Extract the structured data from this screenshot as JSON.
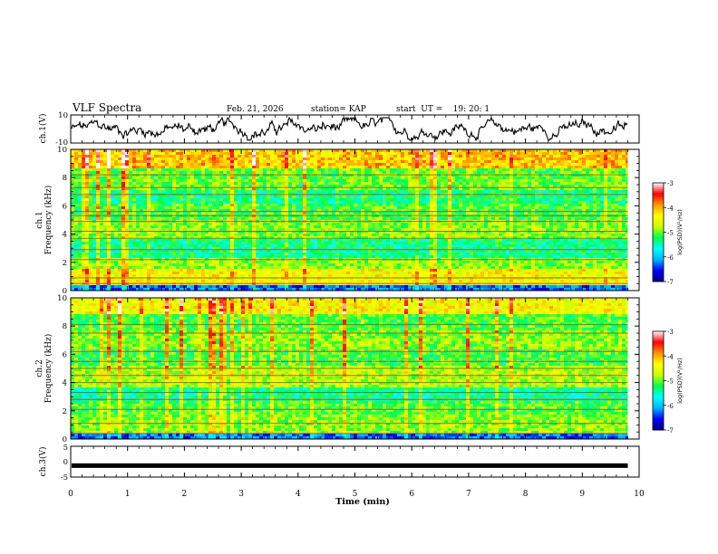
{
  "header": {
    "title": "VLF Spectra",
    "date": "Feb. 21, 2026",
    "station": "station= KAP",
    "start": "start  UT =    19: 20: 1"
  },
  "chart_data": [
    {
      "type": "line",
      "name": "ch1-waveform",
      "ylabel": "ch.1(V)",
      "ylim": [
        -10,
        10
      ],
      "yticks": [
        "10",
        "-10"
      ],
      "x_range_min": [
        0,
        9.8
      ],
      "trace": "continuous noisy voltage between about -7 and 7 V"
    },
    {
      "type": "heatmap",
      "name": "ch1-spectrogram",
      "ylabel": "ch.1\nFrequency (kHz)",
      "ylim": [
        0,
        10
      ],
      "yticks": [
        "0",
        "2",
        "4",
        "6",
        "8",
        "10"
      ],
      "x_range_min": [
        0,
        9.8
      ],
      "colorbar": {
        "label": "log(PSD)(V²/Hz)",
        "range": [
          -7,
          -3
        ],
        "ticks": [
          "-3",
          "-4",
          "-5",
          "-6",
          "-7"
        ]
      },
      "bands_khz": [
        {
          "from": 0,
          "to": 0.3,
          "level": -6.3
        },
        {
          "from": 0.3,
          "to": 1.6,
          "level": -4.4
        },
        {
          "from": 1.6,
          "to": 2.4,
          "level": -4.9
        },
        {
          "from": 2.4,
          "to": 3.6,
          "level": -5.35
        },
        {
          "from": 3.6,
          "to": 5.0,
          "level": -4.9
        },
        {
          "from": 5.0,
          "to": 6.1,
          "level": -5.1
        },
        {
          "from": 6.1,
          "to": 7.2,
          "level": -5.3
        },
        {
          "from": 7.2,
          "to": 8.6,
          "level": -5.0
        },
        {
          "from": 8.6,
          "to": 10.0,
          "level": -4.1
        }
      ],
      "lines_khz": [
        0.5,
        0.9,
        2.2,
        2.9,
        3.7,
        4.2,
        4.9,
        5.3,
        5.6,
        6.8,
        7.3,
        8.2
      ]
    },
    {
      "type": "heatmap",
      "name": "ch2-spectrogram",
      "ylabel": "ch.2\nFrequency (kHz)",
      "ylim": [
        0,
        10
      ],
      "yticks": [
        "0",
        "2",
        "4",
        "6",
        "8",
        "10"
      ],
      "x_range_min": [
        0,
        9.8
      ],
      "colorbar": {
        "label": "log(PSD)(V²/Hz)",
        "range": [
          -7,
          -3
        ],
        "ticks": [
          "-3",
          "-4",
          "-5",
          "-6",
          "-7"
        ]
      },
      "bands_khz": [
        {
          "from": 0,
          "to": 0.3,
          "level": -6.3
        },
        {
          "from": 0.3,
          "to": 1.7,
          "level": -4.9
        },
        {
          "from": 1.7,
          "to": 2.6,
          "level": -5.1
        },
        {
          "from": 2.6,
          "to": 3.6,
          "level": -5.4
        },
        {
          "from": 3.6,
          "to": 5.2,
          "level": -4.8
        },
        {
          "from": 5.2,
          "to": 6.3,
          "level": -5.1
        },
        {
          "from": 6.3,
          "to": 7.6,
          "level": -4.9
        },
        {
          "from": 7.6,
          "to": 8.8,
          "level": -5.1
        },
        {
          "from": 8.8,
          "to": 10.0,
          "level": -4.4
        }
      ],
      "lines_khz": [
        0.4,
        1.1,
        2.1,
        2.8,
        3.3,
        4.0,
        4.5,
        5.0,
        5.5,
        6.2,
        7.5,
        8.1
      ]
    },
    {
      "type": "line",
      "name": "ch3-waveform",
      "ylabel": "ch.3(V)",
      "ylim": [
        -5,
        5
      ],
      "yticks": [
        "5",
        "0",
        "-5"
      ],
      "x_range_min": [
        0,
        9.8
      ],
      "value": -1.3,
      "trace": "nearly constant thick line around -1.3 V"
    }
  ],
  "xaxis": {
    "label": "Time (min)",
    "range": [
      0,
      10
    ],
    "ticks": [
      "0",
      "1",
      "2",
      "3",
      "4",
      "5",
      "6",
      "7",
      "8",
      "9",
      "10"
    ]
  },
  "colors": {
    "scale": [
      "#00007f",
      "#0000ff",
      "#00b4ff",
      "#00ffff",
      "#00ff4c",
      "#c8ff00",
      "#ffff00",
      "#ff9600",
      "#ff0000",
      "#ffffff"
    ],
    "trace": "#000000"
  }
}
